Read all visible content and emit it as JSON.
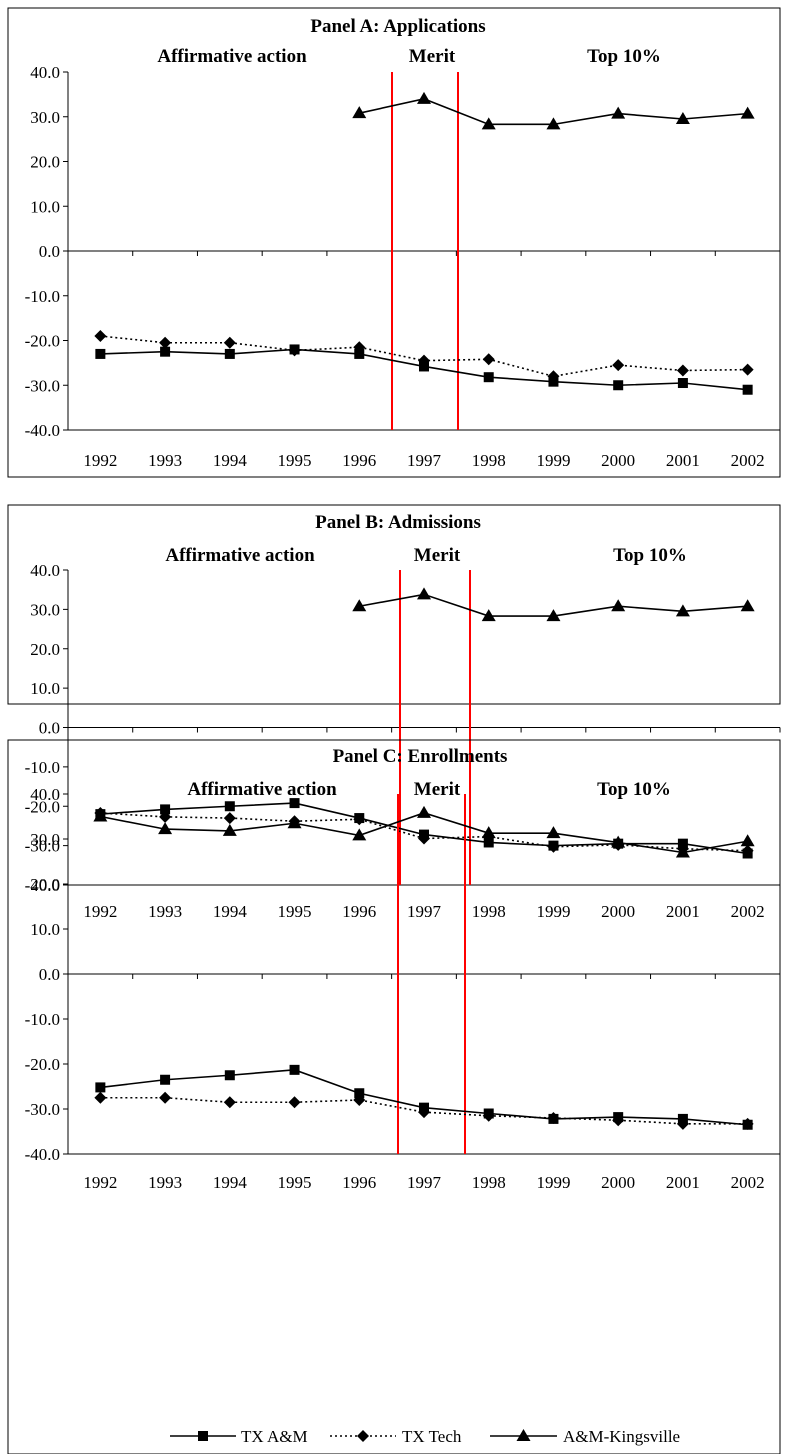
{
  "chart_data": [
    {
      "type": "line",
      "title": "Panel A: Applications",
      "periods": [
        "Affirmative action",
        "Merit",
        "Top 10%"
      ],
      "x": [
        "1992",
        "1993",
        "1994",
        "1995",
        "1996",
        "1997",
        "1998",
        "1999",
        "2000",
        "2001",
        "2002"
      ],
      "ylim": [
        -40,
        40
      ],
      "yticks": [
        "40.0",
        "30.0",
        "20.0",
        "10.0",
        "0.0",
        "-10.0",
        "-20.0",
        "-30.0",
        "-40.0"
      ],
      "vlines_between": [
        [
          1996,
          1997
        ],
        [
          1997,
          1998
        ]
      ],
      "series": [
        {
          "name": "TX A&M",
          "marker": "square",
          "style": "solid",
          "values": [
            -23.0,
            -22.5,
            -23.0,
            -22.0,
            -23.0,
            -25.8,
            -28.2,
            -29.2,
            -30.0,
            -29.5,
            -31.0
          ]
        },
        {
          "name": "TX Tech",
          "marker": "diamond",
          "style": "dotted",
          "values": [
            -19.0,
            -20.5,
            -20.5,
            -22.2,
            -21.5,
            -24.5,
            -24.2,
            -28.0,
            -25.5,
            -26.7,
            -26.5
          ]
        },
        {
          "name": "A&M-Kingsville",
          "marker": "triangle",
          "style": "solid",
          "values": [
            null,
            null,
            null,
            null,
            30.8,
            34.0,
            28.3,
            28.3,
            30.7,
            29.5,
            30.7
          ]
        }
      ]
    },
    {
      "type": "line",
      "title": "Panel B: Admissions",
      "periods": [
        "Affirmative action",
        "Merit",
        "Top 10%"
      ],
      "x": [
        "1992",
        "1993",
        "1994",
        "1995",
        "1996",
        "1997",
        "1998",
        "1999",
        "2000",
        "2001",
        "2002"
      ],
      "ylim": [
        -40,
        40
      ],
      "yticks": [
        "40.0",
        "30.0",
        "20.0",
        "10.0",
        "0.0",
        "-10.0",
        "-20.0",
        "-30.0",
        "-40.0"
      ],
      "vlines_between": [
        [
          1996,
          1997
        ],
        [
          1997,
          1998
        ]
      ],
      "series": [
        {
          "name": "TX A&M",
          "marker": "square",
          "style": "solid",
          "values": [
            -22.0,
            -20.8,
            -20.0,
            -19.2,
            -23.0,
            -27.2,
            -29.2,
            -30.0,
            -29.5,
            -29.5,
            -32.0
          ]
        },
        {
          "name": "TX Tech",
          "marker": "diamond",
          "style": "dotted",
          "values": [
            -21.7,
            -22.7,
            -23.0,
            -23.8,
            -23.3,
            -28.2,
            -27.7,
            -30.3,
            -29.8,
            -30.8,
            -31.3
          ]
        },
        {
          "name": "A&M-Kingsville",
          "marker": "triangle",
          "style": "solid",
          "values": [
            null,
            null,
            null,
            null,
            30.8,
            33.8,
            28.3,
            28.3,
            30.8,
            29.5,
            30.8
          ]
        }
      ]
    },
    {
      "type": "line",
      "title": "Panel C: Enrollments",
      "periods": [
        "Affirmative action",
        "Merit",
        "Top 10%"
      ],
      "x": [
        "1992",
        "1993",
        "1994",
        "1995",
        "1996",
        "1997",
        "1998",
        "1999",
        "2000",
        "2001",
        "2002"
      ],
      "ylim": [
        -40,
        40
      ],
      "yticks": [
        "40.0",
        "30.0",
        "20.0",
        "10.0",
        "0.0",
        "-10.0",
        "-20.0",
        "-30.0",
        "-40.0"
      ],
      "vlines_between": [
        [
          1996,
          1997
        ],
        [
          1997,
          1998
        ]
      ],
      "series": [
        {
          "name": "TX A&M",
          "marker": "square",
          "style": "solid",
          "values": [
            -25.2,
            -23.5,
            -22.5,
            -21.3,
            -26.5,
            -29.7,
            -31.0,
            -32.2,
            -31.8,
            -32.2,
            -33.5
          ]
        },
        {
          "name": "TX Tech",
          "marker": "diamond",
          "style": "dotted",
          "values": [
            -27.5,
            -27.5,
            -28.5,
            -28.5,
            -28.0,
            -30.7,
            -31.5,
            -32.0,
            -32.5,
            -33.3,
            -33.3
          ]
        },
        {
          "name": "A&M-Kingsville",
          "marker": "triangle",
          "style": "solid",
          "values": [
            35.0,
            32.2,
            31.8,
            33.5,
            30.8,
            35.8,
            31.3,
            31.3,
            29.2,
            27.0,
            29.5
          ]
        }
      ]
    }
  ],
  "legend": {
    "items": [
      {
        "label": "TX A&M",
        "marker": "square",
        "style": "solid"
      },
      {
        "label": "TX Tech",
        "marker": "diamond",
        "style": "dotted"
      },
      {
        "label": "A&M-Kingsville",
        "marker": "triangle",
        "style": "solid"
      }
    ]
  },
  "colors": {
    "divider": "#ff0000",
    "line": "#000000",
    "frame": "#000000"
  }
}
